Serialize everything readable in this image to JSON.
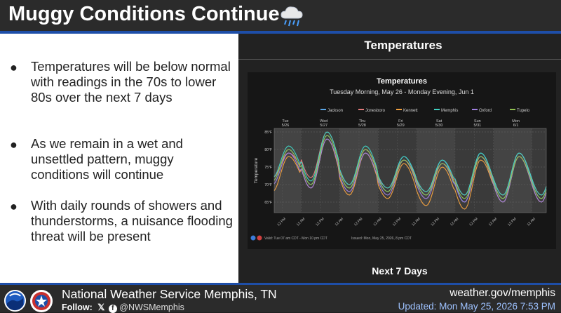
{
  "header": {
    "title": "Muggy Conditions Continue",
    "icon": "rain-cloud-icon"
  },
  "bullets": [
    "Temperatures will be below normal with readings in the 70s to lower 80s over the next 7 days",
    "As we remain in a wet and unsettled pattern, muggy conditions will continue",
    "With daily rounds of showers and thunderstorms, a nuisance flooding threat will be present"
  ],
  "panel": {
    "title": "Temperatures",
    "footer_tab": "Next 7 Days"
  },
  "chart_data": {
    "type": "line",
    "title": "Temperatures",
    "subtitle": "Tuesday Morning, May 26 - Monday Evening, Jun 1",
    "ylabel": "Temperature",
    "ylim": [
      62,
      86
    ],
    "yticks": [
      "65°F",
      "70°F",
      "75°F",
      "80°F",
      "85°F"
    ],
    "ytick_values": [
      65,
      70,
      75,
      80,
      85
    ],
    "xlim": [
      0,
      170
    ],
    "day_labels": [
      {
        "day": "Tue",
        "date": "5/26",
        "hour": 7
      },
      {
        "day": "Wed",
        "date": "5/27",
        "hour": 31
      },
      {
        "day": "Thu",
        "date": "5/28",
        "hour": 55
      },
      {
        "day": "Fri",
        "date": "5/29",
        "hour": 79
      },
      {
        "day": "Sat",
        "date": "5/30",
        "hour": 103
      },
      {
        "day": "Sun",
        "date": "5/31",
        "hour": 127
      },
      {
        "day": "Mon",
        "date": "6/1",
        "hour": 151
      }
    ],
    "xtick_labels": [
      "12 PM",
      "12 AM",
      "12 PM",
      "12 AM",
      "12 PM",
      "12 AM",
      "12 PM",
      "12 AM",
      "12 PM",
      "12 AM",
      "12 PM",
      "12 AM",
      "12 PM",
      "12 AM"
    ],
    "xtick_hours": [
      5,
      17,
      29,
      41,
      53,
      65,
      77,
      89,
      101,
      113,
      125,
      137,
      149,
      161
    ],
    "grid": true,
    "legend": "top",
    "series": [
      {
        "name": "Jackson",
        "color": "#5aa6e6",
        "highs": [
          80,
          84,
          80,
          78,
          77,
          79,
          79
        ],
        "lows": [
          71,
          70,
          69,
          68,
          67,
          65,
          66
        ]
      },
      {
        "name": "Jonesboro",
        "color": "#e07a7a",
        "highs": [
          79,
          85,
          80,
          77,
          76,
          78,
          79
        ],
        "lows": [
          72,
          72,
          70,
          69,
          68,
          67,
          67
        ]
      },
      {
        "name": "Kennett",
        "color": "#f0a040",
        "highs": [
          78,
          83,
          79,
          76,
          75,
          77,
          78
        ],
        "lows": [
          68,
          69,
          67,
          66,
          64,
          63,
          65
        ]
      },
      {
        "name": "Memphis",
        "color": "#40d0c0",
        "highs": [
          81,
          85,
          81,
          78,
          77,
          79,
          79
        ],
        "lows": [
          72,
          71,
          70,
          69,
          68,
          67,
          67
        ]
      },
      {
        "name": "Oxford",
        "color": "#a080e0",
        "highs": [
          79,
          83,
          79,
          77,
          76,
          78,
          78
        ],
        "lows": [
          70,
          69,
          68,
          67,
          66,
          65,
          65
        ]
      },
      {
        "name": "Tupelo",
        "color": "#90c050",
        "highs": [
          80,
          84,
          80,
          77,
          76,
          78,
          78
        ],
        "lows": [
          71,
          70,
          69,
          68,
          67,
          66,
          66
        ]
      }
    ],
    "valid_text": "Valid: Tue 07 am CDT - Mon 10 pm CDT",
    "issued_text": "Issued: Mon, May 25, 2026, 8 pm CDT"
  },
  "footer": {
    "office": "National Weather Service Memphis, TN",
    "follow_label": "Follow:",
    "handle": "@NWSMemphis",
    "website": "weather.gov/memphis",
    "updated": "Updated: Mon May 25, 2026 7:53 PM"
  }
}
